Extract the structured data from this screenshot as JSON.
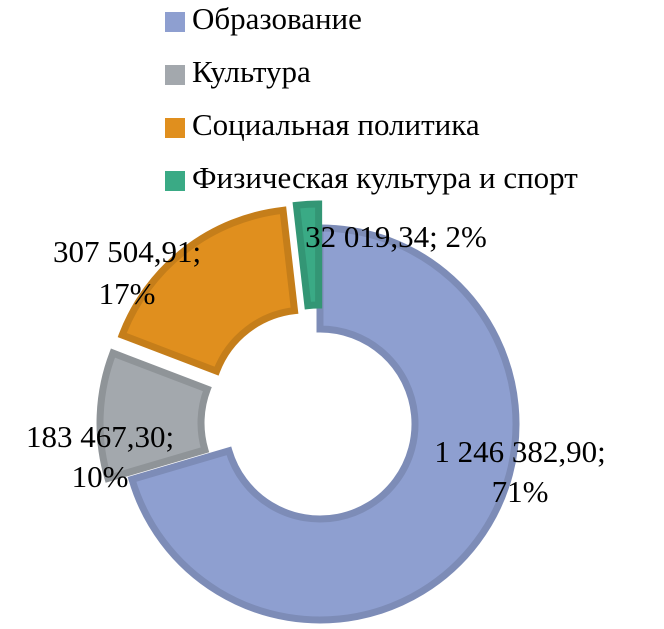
{
  "chart_data": {
    "type": "donut",
    "categories": [
      "Образование",
      "Культура",
      "Социальная политика",
      "Физическая культура и спорт"
    ],
    "values": [
      1246382.9,
      183467.3,
      307504.91,
      32019.34
    ],
    "value_labels": [
      "1 246 382,90; 71%",
      "183 467,30; 10%",
      "307 504,91; 17%",
      "32 019,34; 2%"
    ],
    "colors": [
      "#8e9fd0",
      "#a3a8ad",
      "#e08f1e",
      "#3aaa85"
    ],
    "legend": "top"
  }
}
